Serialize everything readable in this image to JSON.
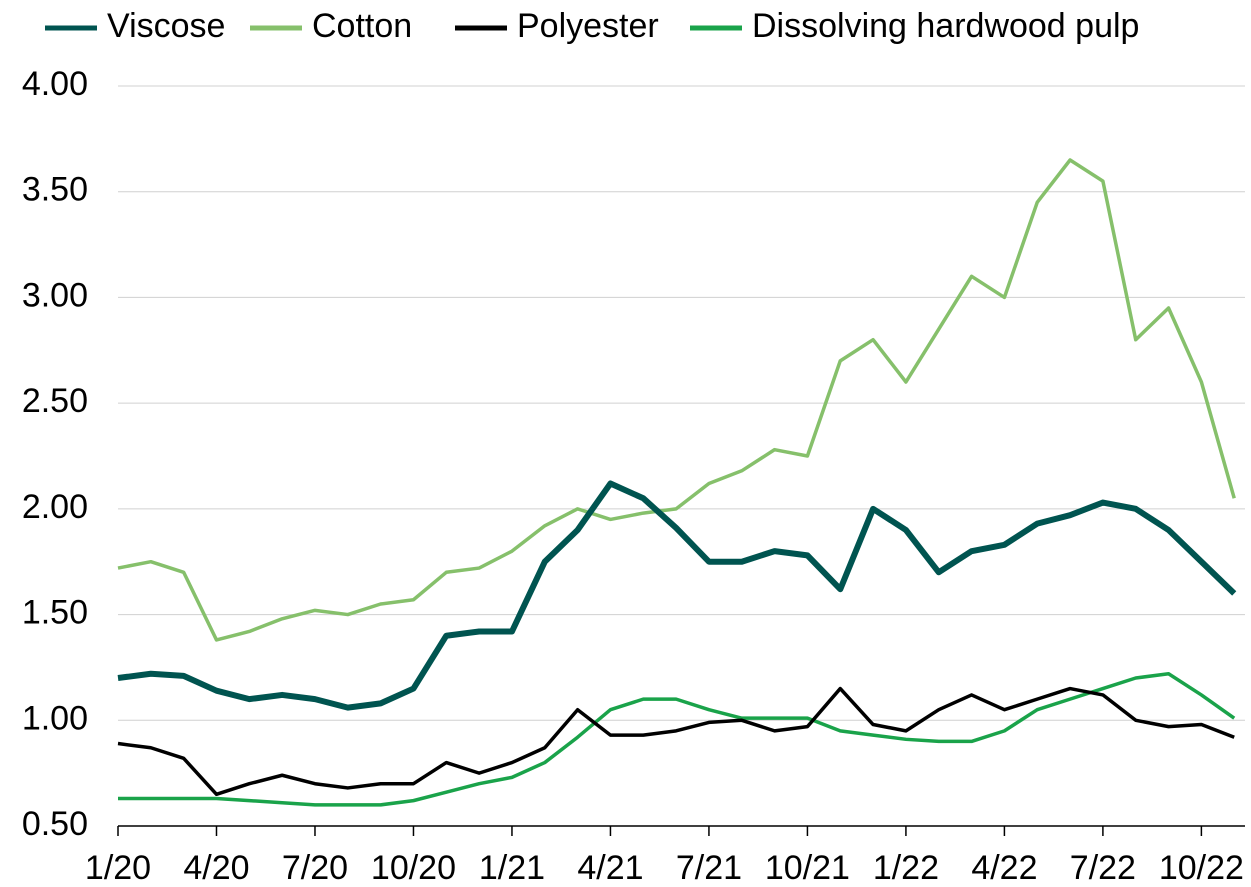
{
  "chart_data": {
    "type": "line",
    "x": [
      "1/20",
      "2/20",
      "3/20",
      "4/20",
      "5/20",
      "6/20",
      "7/20",
      "8/20",
      "9/20",
      "10/20",
      "11/20",
      "12/20",
      "1/21",
      "2/21",
      "3/21",
      "4/21",
      "5/21",
      "6/21",
      "7/21",
      "8/21",
      "9/21",
      "10/21",
      "11/21",
      "12/21",
      "1/22",
      "2/22",
      "3/22",
      "4/22",
      "5/22",
      "6/22",
      "7/22",
      "8/22",
      "9/22",
      "10/22",
      "11/22"
    ],
    "series": [
      {
        "name": "Viscose",
        "color": "#005450",
        "values": [
          1.2,
          1.22,
          1.21,
          1.14,
          1.1,
          1.12,
          1.1,
          1.06,
          1.08,
          1.15,
          1.4,
          1.42,
          1.42,
          1.75,
          1.9,
          2.12,
          2.05,
          1.91,
          1.75,
          1.75,
          1.8,
          1.78,
          1.62,
          2.0,
          1.9,
          1.7,
          1.8,
          1.83,
          1.93,
          1.97,
          2.03,
          2.0,
          1.9,
          1.75,
          1.6
        ]
      },
      {
        "name": "Cotton",
        "color": "#86c06b",
        "values": [
          1.72,
          1.75,
          1.7,
          1.38,
          1.42,
          1.48,
          1.52,
          1.5,
          1.55,
          1.57,
          1.7,
          1.72,
          1.8,
          1.92,
          2.0,
          1.95,
          1.98,
          2.0,
          2.12,
          2.18,
          2.28,
          2.25,
          2.7,
          2.8,
          2.6,
          2.85,
          3.1,
          3.0,
          3.45,
          3.65,
          3.55,
          2.8,
          2.95,
          2.6,
          2.05
        ]
      },
      {
        "name": "Polyester",
        "color": "#000000",
        "values": [
          0.89,
          0.87,
          0.82,
          0.65,
          0.7,
          0.74,
          0.7,
          0.68,
          0.7,
          0.7,
          0.8,
          0.75,
          0.8,
          0.87,
          1.05,
          0.93,
          0.93,
          0.95,
          0.99,
          1.0,
          0.95,
          0.97,
          1.15,
          0.98,
          0.95,
          1.05,
          1.12,
          1.05,
          1.1,
          1.15,
          1.12,
          1.0,
          0.97,
          0.98,
          0.92
        ]
      },
      {
        "name": "Dissolving hardwood pulp",
        "color": "#1aa34a",
        "values": [
          0.63,
          0.63,
          0.63,
          0.63,
          0.62,
          0.61,
          0.6,
          0.6,
          0.6,
          0.62,
          0.66,
          0.7,
          0.73,
          0.8,
          0.92,
          1.05,
          1.1,
          1.1,
          1.05,
          1.01,
          1.01,
          1.01,
          0.95,
          0.93,
          0.91,
          0.9,
          0.9,
          0.95,
          1.05,
          1.1,
          1.15,
          1.2,
          1.22,
          1.12,
          1.01
        ]
      }
    ],
    "ylim": [
      0.5,
      4.0
    ],
    "yticks": [
      {
        "value": 0.5,
        "label": "0.50"
      },
      {
        "value": 1,
        "label": "1.00"
      },
      {
        "value": 1.5,
        "label": "1.50"
      },
      {
        "value": 2,
        "label": "2.00"
      },
      {
        "value": 2.5,
        "label": "2.50"
      },
      {
        "value": 3,
        "label": "3.00"
      },
      {
        "value": 3.5,
        "label": "3.50"
      },
      {
        "value": 4,
        "label": "4.00"
      }
    ],
    "xticks": [
      "1/20",
      "4/20",
      "7/20",
      "10/20",
      "1/21",
      "4/21",
      "7/21",
      "10/21",
      "1/22",
      "4/22",
      "7/22",
      "10/22"
    ],
    "grid": true,
    "legend": "top"
  }
}
